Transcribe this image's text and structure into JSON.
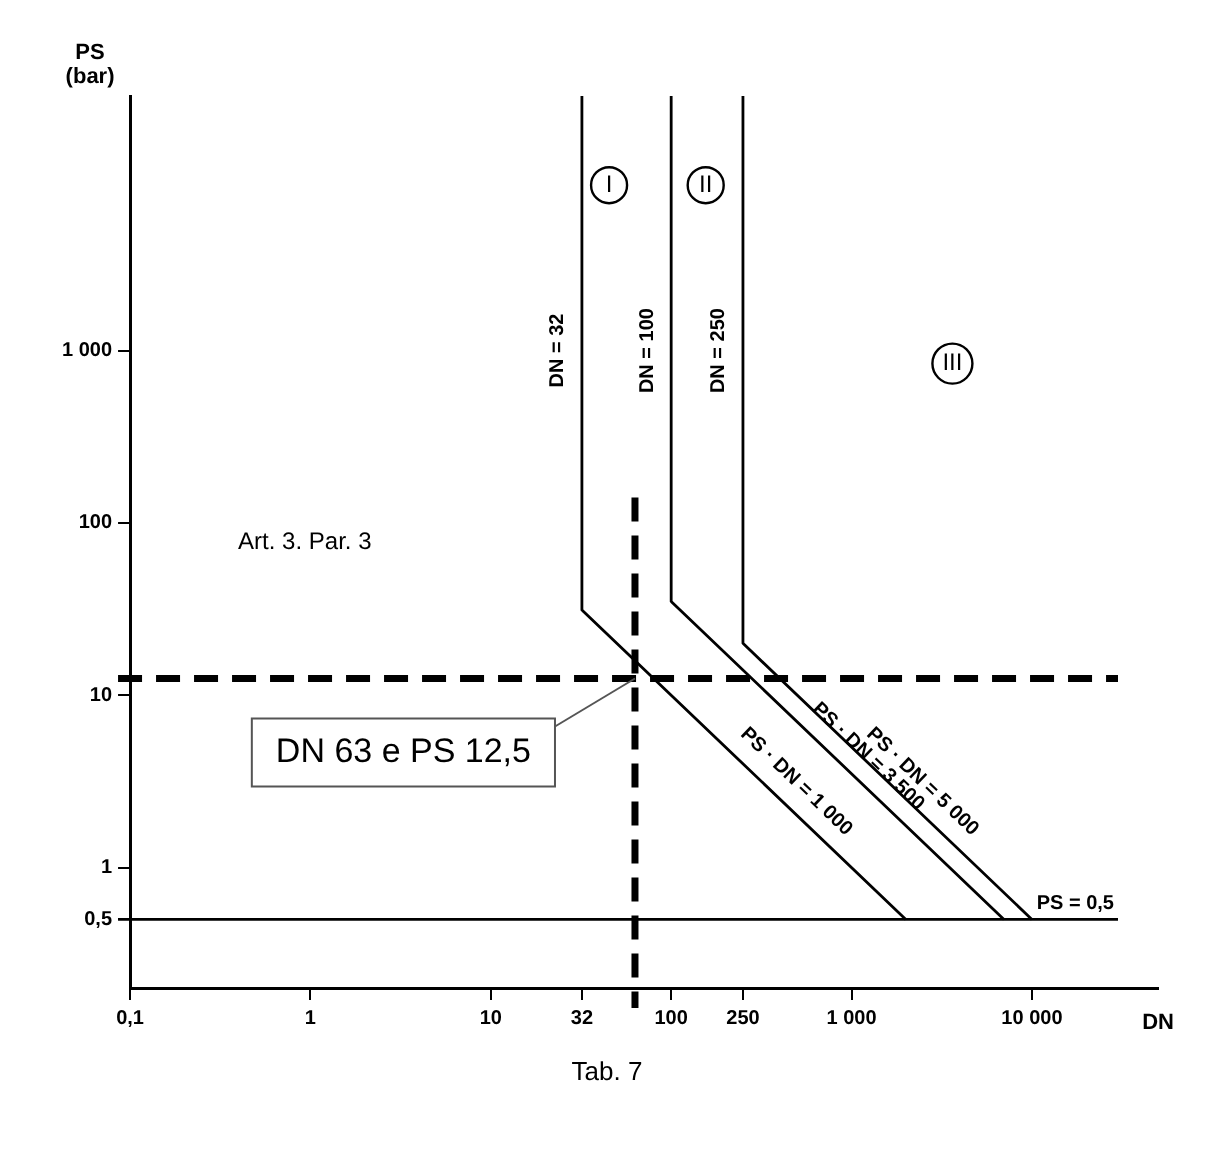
{
  "chart_data": {
    "type": "line",
    "xlabel": "DN",
    "ylabel": "PS\n(bar)",
    "log": "xy",
    "grid": false,
    "legend": false,
    "marker": "none",
    "line_style": "solid",
    "xlim": [
      0.1,
      50000
    ],
    "xticks": [
      {
        "value": 0.1,
        "label": "0,1"
      },
      1,
      10,
      32,
      100,
      250,
      {
        "value": 1000,
        "label": "1 000"
      },
      {
        "value": 10000,
        "label": "10 000"
      }
    ],
    "ylim": [
      0.2,
      30000
    ],
    "yticks": [
      {
        "value": 0.5,
        "label": "0,5"
      },
      1,
      10,
      100,
      {
        "value": 1000,
        "label": "1 000"
      }
    ],
    "series": [
      {
        "color": "#000000",
        "x": [
          32,
          32,
          2000
        ],
        "values": [
          30000,
          31.25,
          0.5
        ]
      },
      {
        "color": "#000000",
        "x": [
          100,
          100,
          7000
        ],
        "values": [
          30000,
          35,
          0.5
        ]
      },
      {
        "color": "#000000",
        "x": [
          250,
          250,
          10000
        ],
        "values": [
          30000,
          20,
          0.5
        ]
      }
    ],
    "ref_lines": [
      {
        "axis": "y",
        "value": 0.5,
        "label": "PS = 0,5",
        "color": "#000000",
        "line_style": "solid"
      },
      {
        "axis": "y",
        "value": 12.5,
        "color": "#000000",
        "line_style": "dashed"
      },
      {
        "axis": "x",
        "value": 63,
        "color": "#000000",
        "line_style": "dashed"
      }
    ],
    "annotations": [
      "Art. 3. Par. 3",
      "I",
      "II",
      "III",
      {
        "text": "DN = 32",
        "x": 32,
        "y": 1000
      },
      {
        "text": "DN = 100",
        "x": 100,
        "y": 1000
      },
      {
        "text": "DN = 250",
        "x": 250,
        "y": 1000
      },
      {
        "text": "PS · DN = 1 000",
        "x": 400,
        "y": 2.5
      },
      {
        "text": "PS · DN = 3 500",
        "x": 1000,
        "y": 3.5
      },
      {
        "text": "PS · DN = 5 000",
        "x": 2000,
        "y": 2.5
      },
      {
        "text": "DN 63 e PS 12,5",
        "x": 63,
        "y": 12.5
      },
      "Tab. 7"
    ]
  }
}
